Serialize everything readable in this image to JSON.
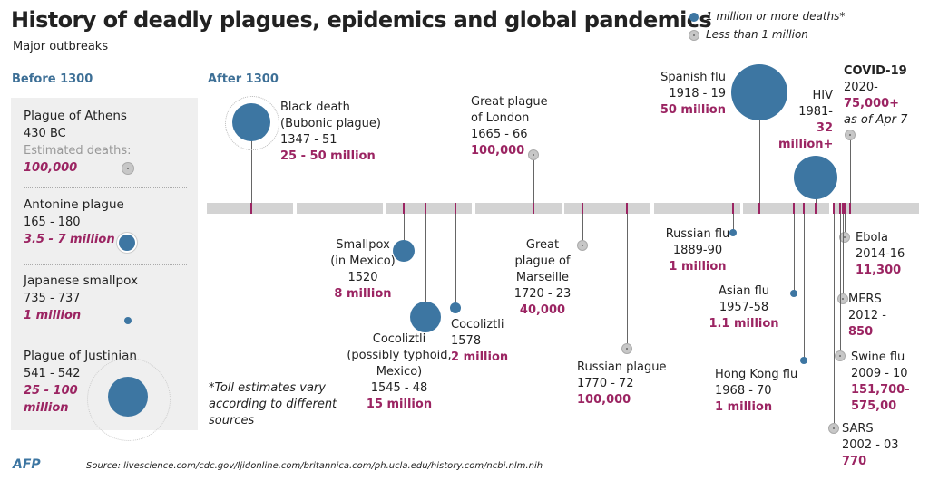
{
  "title": "History of deadly  plagues, epidemics and global pandemics",
  "subtitle": "Major outbreaks",
  "legend": {
    "major": "1 million or more deaths*",
    "minor": "Less than 1 million"
  },
  "sections": {
    "before": "Before 1300",
    "after": "After 1300"
  },
  "before_1300": [
    {
      "name": "Plague of Athens",
      "dates": "430 BC",
      "estimate_label": "Estimated deaths:",
      "deaths": "100,000",
      "major": false
    },
    {
      "name": "Antonine plague",
      "dates": "165 - 180",
      "deaths": "3.5 - 7 million",
      "major": true
    },
    {
      "name": "Japanese smallpox",
      "dates": "735 - 737",
      "deaths": "1 million",
      "major": true
    },
    {
      "name": "Plague of Justinian",
      "dates": "541 - 542",
      "deaths": "25 - 100 million",
      "major": true
    }
  ],
  "events": [
    {
      "lines": [
        "Black death",
        "(Bubonic plague)",
        "1347 - 51"
      ],
      "deaths": "25 - 50 million",
      "year": 1350,
      "major": true
    },
    {
      "lines": [
        "Smallpox",
        "(in Mexico)",
        "1520"
      ],
      "deaths": "8 million",
      "year": 1520,
      "major": true
    },
    {
      "lines": [
        "Cocoliztli",
        "(possibly typhoid,",
        "Mexico)",
        "1545 - 48"
      ],
      "deaths": "15 million",
      "year": 1545,
      "major": true
    },
    {
      "lines": [
        "Cocoliztli",
        "1578"
      ],
      "deaths": "2 million",
      "year": 1578,
      "major": true
    },
    {
      "lines": [
        "Great plague",
        "of London",
        "1665 - 66"
      ],
      "deaths": "100,000",
      "year": 1665,
      "major": false
    },
    {
      "lines": [
        "Great",
        "plague of",
        "Marseille",
        "1720 - 23"
      ],
      "deaths": "40,000",
      "year": 1720,
      "major": false
    },
    {
      "lines": [
        "Russian plague",
        "1770 - 72"
      ],
      "deaths": "100,000",
      "year": 1770,
      "major": false
    },
    {
      "lines": [
        "Russian flu",
        "1889-90"
      ],
      "deaths": "1 million",
      "year": 1889,
      "major": true
    },
    {
      "lines": [
        "Spanish flu",
        "1918 - 19"
      ],
      "deaths": "50 million",
      "year": 1918,
      "major": true
    },
    {
      "lines": [
        "Asian flu",
        "1957-58"
      ],
      "deaths": "1.1 million",
      "year": 1957,
      "major": true
    },
    {
      "lines": [
        "Hong Kong flu",
        "1968 - 70"
      ],
      "deaths": "1 million",
      "year": 1968,
      "major": true
    },
    {
      "lines": [
        "HIV",
        "1981-"
      ],
      "deaths": "32 million+",
      "year": 1981,
      "major": true
    },
    {
      "lines": [
        "COVID-19",
        "2020-"
      ],
      "deaths": "75,000+",
      "note": "as of Apr 7",
      "year": 2020,
      "major": false
    },
    {
      "lines": [
        "Ebola",
        "2014-16"
      ],
      "deaths": "11,300",
      "year": 2014,
      "major": false
    },
    {
      "lines": [
        "MERS",
        "2012 -"
      ],
      "deaths": "850",
      "year": 2012,
      "major": false
    },
    {
      "lines": [
        "Swine flu",
        "2009 - 10"
      ],
      "deaths": "151,700-575,00",
      "year": 2009,
      "major": false
    },
    {
      "lines": [
        "SARS",
        "2002 - 03"
      ],
      "deaths": "770",
      "year": 2002,
      "major": false
    }
  ],
  "footnote": "*Toll estimates vary according to different sources",
  "logo": "AFP",
  "source": "Source: livescience.com/cdc.gov/ljidonline.com/britannica.com/ph.ucla.edu/history.com/ncbi.nlm.nih",
  "colors": {
    "major": "#3d76a2",
    "deaths": "#9b2462",
    "bar": "#d3d3d3"
  }
}
